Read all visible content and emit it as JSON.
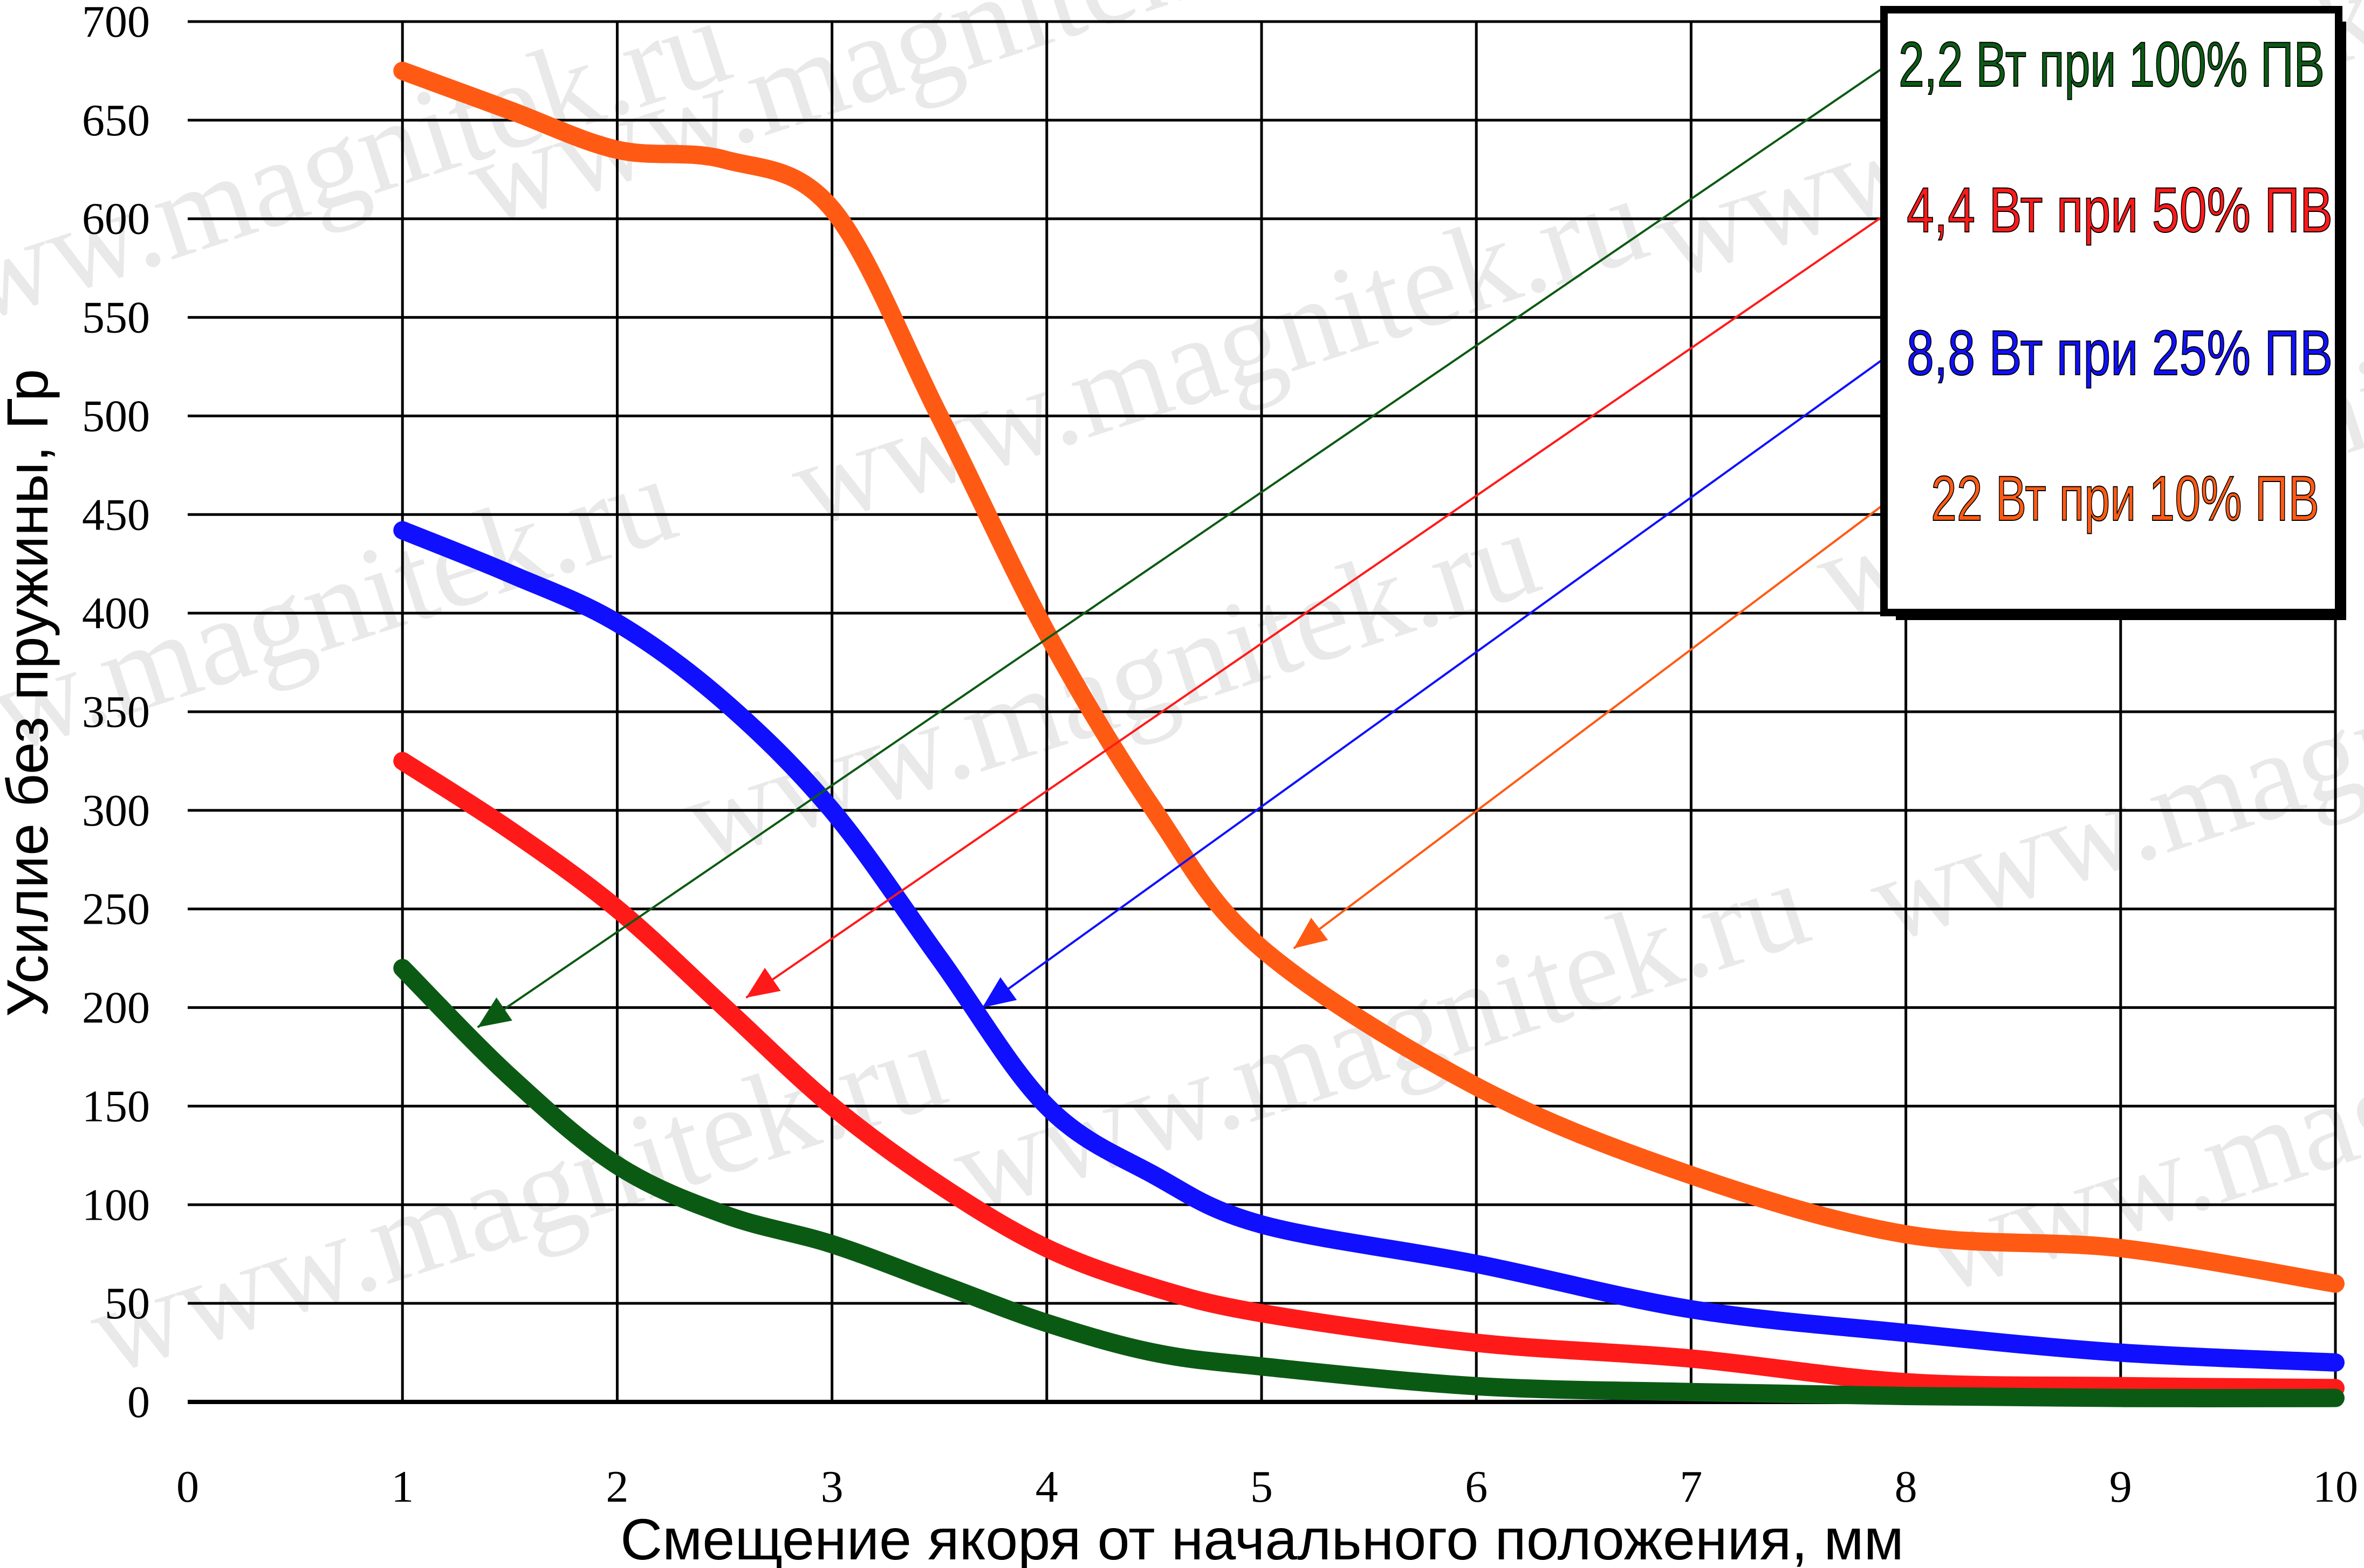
{
  "watermark": {
    "text": "www.magnitek.ru",
    "color": "#c8c8c8"
  },
  "chart_data": {
    "type": "line",
    "title": "",
    "xlabel": "Смещение якоря от начального положения, мм",
    "ylabel": "Усилие без пружины, Гр",
    "xlim": [
      0,
      10
    ],
    "ylim": [
      0,
      700
    ],
    "x_ticks": [
      0,
      1,
      2,
      3,
      4,
      5,
      6,
      7,
      8,
      9,
      10
    ],
    "y_ticks": [
      0,
      50,
      100,
      150,
      200,
      250,
      300,
      350,
      400,
      450,
      500,
      550,
      600,
      650,
      700
    ],
    "x_tick_labels": [
      "0",
      "1",
      "2",
      "3",
      "4",
      "5",
      "6",
      "7",
      "8",
      "9",
      "10"
    ],
    "y_tick_labels": [
      "0",
      "50",
      "100",
      "150",
      "200",
      "250",
      "300",
      "350",
      "400",
      "450",
      "500",
      "550",
      "600",
      "650",
      "700"
    ],
    "grid": true,
    "legend_position": "top-right",
    "series": [
      {
        "name": "2,2 Вт при 100% ПВ",
        "color": "#0b5a14",
        "x": [
          1,
          1.5,
          2,
          2.5,
          3,
          3.5,
          4,
          4.5,
          5,
          6,
          7,
          8,
          9,
          10
        ],
        "y": [
          220,
          165,
          120,
          95,
          80,
          60,
          40,
          25,
          18,
          8,
          5,
          3,
          2,
          2
        ],
        "arrow_to": [
          1.35,
          190
        ]
      },
      {
        "name": "4,4 Вт при 50% ПВ",
        "color": "#ff1a1a",
        "x": [
          1,
          1.5,
          2,
          2.5,
          3,
          3.5,
          4,
          4.5,
          5,
          6,
          7,
          8,
          9,
          10
        ],
        "y": [
          325,
          290,
          250,
          200,
          150,
          110,
          78,
          58,
          45,
          30,
          22,
          10,
          8,
          7
        ],
        "arrow_to": [
          2.6,
          205
        ]
      },
      {
        "name": "8,8 Вт при 25% ПВ",
        "color": "#1010ff",
        "x": [
          1,
          1.5,
          2,
          2.5,
          3,
          3.5,
          4,
          4.5,
          5,
          6,
          7,
          8,
          9,
          10
        ],
        "y": [
          442,
          420,
          395,
          355,
          300,
          225,
          150,
          115,
          90,
          70,
          47,
          35,
          25,
          20
        ],
        "arrow_to": [
          3.7,
          200
        ]
      },
      {
        "name": "22 Вт при 10% ПВ",
        "color": "#ff5a14",
        "x": [
          1,
          1.5,
          2,
          2.5,
          3,
          3.5,
          4,
          4.5,
          5,
          6,
          7,
          8,
          9,
          10
        ],
        "y": [
          675,
          655,
          635,
          630,
          605,
          500,
          390,
          300,
          230,
          160,
          115,
          85,
          78,
          60
        ],
        "arrow_to": [
          5.15,
          230
        ]
      }
    ]
  }
}
